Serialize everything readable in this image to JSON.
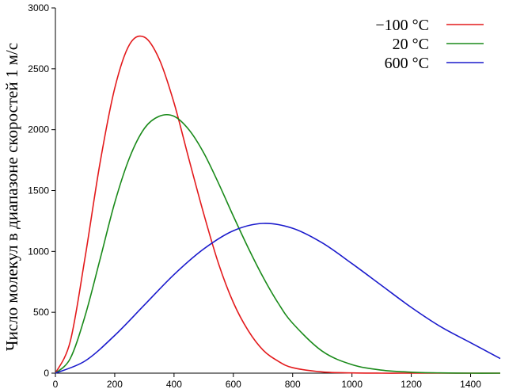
{
  "chart_data": {
    "type": "line",
    "ylabel": "Число молекул в диапазоне скоростей 1 м/с",
    "xlabel": "",
    "title": "",
    "xlim": [
      0,
      1500
    ],
    "ylim": [
      0,
      3000
    ],
    "xticks": [
      0,
      200,
      400,
      600,
      800,
      1000,
      1200,
      1400
    ],
    "yticks": [
      0,
      500,
      1000,
      1500,
      2000,
      2500,
      3000
    ],
    "grid": false,
    "legend_position": "top-right",
    "series": [
      {
        "name": "−100 °C",
        "color": "#e31a1c",
        "x": [
          0,
          50,
          100,
          150,
          200,
          250,
          300,
          350,
          400,
          450,
          500,
          550,
          600,
          650,
          700,
          750,
          800,
          900,
          1000,
          1100,
          1200,
          1300,
          1400,
          1500
        ],
        "y": [
          0,
          260,
          950,
          1720,
          2340,
          2700,
          2760,
          2580,
          2220,
          1760,
          1310,
          900,
          580,
          350,
          190,
          100,
          45,
          10,
          2,
          0,
          0,
          0,
          0,
          0
        ]
      },
      {
        "name": "20 °C",
        "color": "#1a8a1a",
        "x": [
          0,
          50,
          100,
          150,
          200,
          250,
          300,
          350,
          400,
          450,
          500,
          550,
          600,
          650,
          700,
          750,
          800,
          900,
          1000,
          1100,
          1200,
          1300,
          1400,
          1500
        ],
        "y": [
          0,
          120,
          470,
          930,
          1400,
          1770,
          2010,
          2110,
          2110,
          2000,
          1810,
          1560,
          1290,
          1030,
          790,
          580,
          410,
          180,
          70,
          25,
          8,
          2,
          0,
          0
        ]
      },
      {
        "name": "600 °C",
        "color": "#1a1acc",
        "x": [
          0,
          100,
          200,
          300,
          400,
          500,
          600,
          700,
          800,
          900,
          1000,
          1100,
          1200,
          1300,
          1400,
          1500
        ],
        "y": [
          0,
          100,
          310,
          560,
          810,
          1020,
          1170,
          1230,
          1190,
          1070,
          900,
          720,
          540,
          380,
          250,
          120
        ]
      }
    ]
  }
}
